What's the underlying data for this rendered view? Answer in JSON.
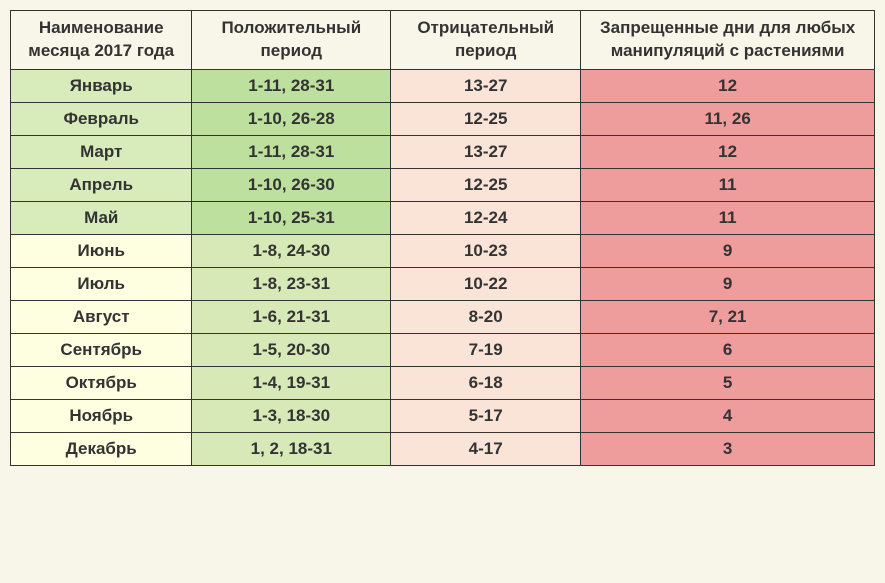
{
  "table": {
    "columns": [
      "Наименование месяца 2017 года",
      "Положительный период",
      "Отрицательный период",
      "Запрещенные дни для любых манипуляций с растениями"
    ],
    "column_widths_pct": [
      21,
      23,
      22,
      34
    ],
    "header_bg": "#f8f6e8",
    "header_fontsize": 17,
    "body_fontsize": 17,
    "border_color": "#333333",
    "page_bg": "#f8f6e8",
    "month_colors": {
      "spring_winter": "#d8ebbb",
      "summer_autumn": "#feffe0"
    },
    "positive_colors": {
      "spring_winter": "#bde09f",
      "summer_autumn": "#d8e9b8"
    },
    "negative_color": "#fae4d7",
    "banned_color": "#ef9c9c",
    "rows": [
      {
        "month": "Январь",
        "positive": "1-11, 28-31",
        "negative": "13-27",
        "banned": "12",
        "shade": "g"
      },
      {
        "month": "Февраль",
        "positive": "1-10, 26-28",
        "negative": "12-25",
        "banned": "11, 26",
        "shade": "g"
      },
      {
        "month": "Март",
        "positive": "1-11, 28-31",
        "negative": "13-27",
        "banned": "12",
        "shade": "g"
      },
      {
        "month": "Апрель",
        "positive": "1-10, 26-30",
        "negative": "12-25",
        "banned": "11",
        "shade": "g"
      },
      {
        "month": "Май",
        "positive": "1-10, 25-31",
        "negative": "12-24",
        "banned": "11",
        "shade": "g"
      },
      {
        "month": "Июнь",
        "positive": "1-8, 24-30",
        "negative": "10-23",
        "banned": "9",
        "shade": "y"
      },
      {
        "month": "Июль",
        "positive": "1-8, 23-31",
        "negative": "10-22",
        "banned": "9",
        "shade": "y"
      },
      {
        "month": "Август",
        "positive": "1-6, 21-31",
        "negative": "8-20",
        "banned": "7, 21",
        "shade": "y"
      },
      {
        "month": "Сентябрь",
        "positive": "1-5, 20-30",
        "negative": "7-19",
        "banned": "6",
        "shade": "y"
      },
      {
        "month": "Октябрь",
        "positive": "1-4, 19-31",
        "negative": "6-18",
        "banned": "5",
        "shade": "y"
      },
      {
        "month": "Ноябрь",
        "positive": "1-3, 18-30",
        "negative": "5-17",
        "banned": "4",
        "shade": "y"
      },
      {
        "month": "Декабрь",
        "positive": "1, 2, 18-31",
        "negative": "4-17",
        "banned": "3",
        "shade": "y"
      }
    ]
  }
}
